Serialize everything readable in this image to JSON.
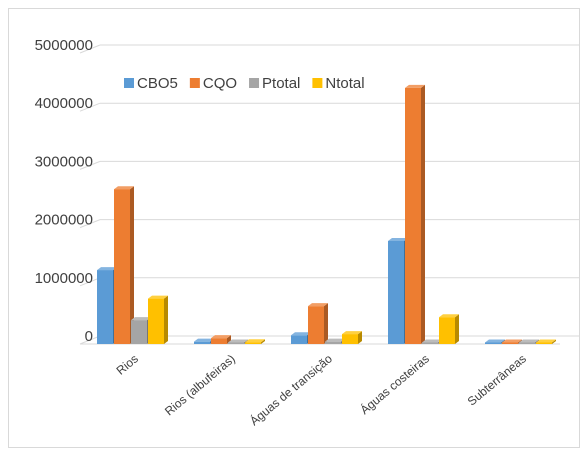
{
  "chart_data": {
    "type": "bar",
    "style": "3d-clustered-column",
    "categories": [
      "Rios",
      "Rios (albufeiras)",
      "Águas de transição",
      "Águas costeiras",
      "Subterrâneas"
    ],
    "series": [
      {
        "name": "CBO5",
        "color": "#5b9bd5",
        "values": [
          1270000,
          40000,
          150000,
          1770000,
          5000
        ]
      },
      {
        "name": "CQO",
        "color": "#ed7d31",
        "values": [
          2660000,
          100000,
          650000,
          4400000,
          10000
        ]
      },
      {
        "name": "Ptotal",
        "color": "#a5a5a5",
        "values": [
          410000,
          20000,
          40000,
          20000,
          5000
        ]
      },
      {
        "name": "Ntotal",
        "color": "#ffc000",
        "values": [
          780000,
          30000,
          170000,
          460000,
          8000
        ]
      }
    ],
    "y_ticks": [
      "0",
      "1000000",
      "2000000",
      "3000000",
      "4000000",
      "5000000"
    ],
    "ylim": [
      0,
      5000000
    ],
    "grid": true,
    "legend_position": "top-left"
  }
}
